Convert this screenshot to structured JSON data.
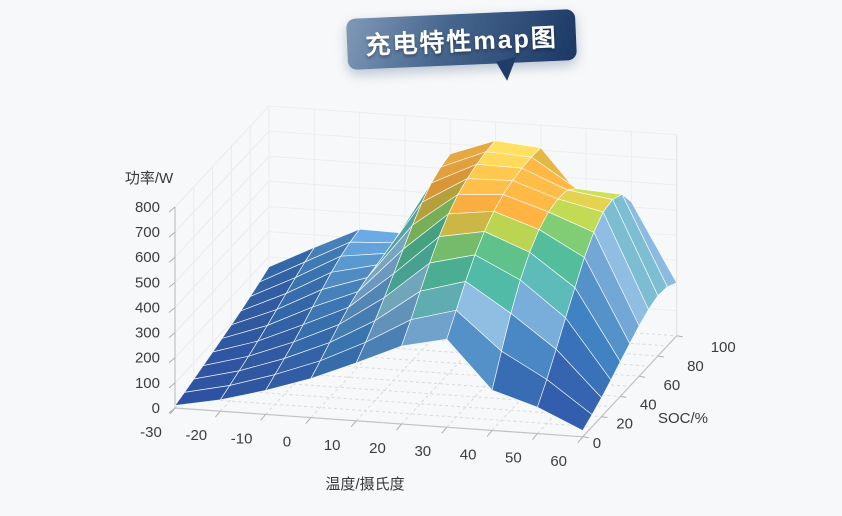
{
  "title": {
    "text": "充电特性map图"
  },
  "chart_data": {
    "type": "surface",
    "title": "充电特性map图",
    "legend_position": "none",
    "grid_on": true,
    "x_axis": {
      "name": "温度/摄氏度",
      "ticks": [
        -30,
        -20,
        -10,
        0,
        10,
        20,
        30,
        40,
        50,
        60
      ],
      "range": [
        -30,
        60
      ]
    },
    "y_axis": {
      "name": "SOC/%",
      "ticks": [
        0,
        20,
        40,
        60,
        80,
        100
      ],
      "range": [
        0,
        100
      ]
    },
    "z_axis": {
      "name": "功率/W",
      "ticks": [
        0,
        100,
        200,
        300,
        400,
        500,
        600,
        700,
        800
      ],
      "range": [
        0,
        800
      ]
    },
    "grid": {
      "temperature": [
        -30,
        -20,
        -10,
        0,
        10,
        20,
        30,
        40,
        50,
        60
      ],
      "soc": [
        0,
        10,
        20,
        30,
        40,
        50,
        60,
        70,
        80,
        90,
        100
      ],
      "power": [
        [
          10,
          22,
          35,
          48,
          62,
          76,
          90,
          105,
          122,
          140,
          160
        ],
        [
          45,
          62,
          80,
          98,
          118,
          140,
          163,
          187,
          210,
          232,
          250
        ],
        [
          95,
          118,
          142,
          168,
          196,
          226,
          256,
          284,
          308,
          324,
          335
        ],
        [
          155,
          186,
          218,
          250,
          278,
          300,
          316,
          326,
          332,
          334,
          332
        ],
        [
          230,
          272,
          318,
          370,
          425,
          482,
          538,
          588,
          625,
          648,
          660
        ],
        [
          310,
          375,
          448,
          520,
          585,
          635,
          672,
          695,
          712,
          722,
          726
        ],
        [
          350,
          425,
          500,
          565,
          618,
          658,
          685,
          700,
          709,
          713,
          710
        ],
        [
          160,
          275,
          385,
          478,
          548,
          598,
          628,
          640,
          635,
          600,
          505
        ],
        [
          105,
          175,
          255,
          340,
          420,
          500,
          560,
          600,
          610,
          590,
          520
        ],
        [
          25,
          48,
          75,
          105,
          138,
          170,
          200,
          225,
          240,
          235,
          210
        ]
      ]
    },
    "colormap": [
      {
        "z": 0,
        "color": "#2b4c9d"
      },
      {
        "z": 140,
        "color": "#3562ad"
      },
      {
        "z": 240,
        "color": "#3d7ec0"
      },
      {
        "z": 330,
        "color": "#5f9ace"
      },
      {
        "z": 400,
        "color": "#93c0e4"
      },
      {
        "z": 455,
        "color": "#52b9ae"
      },
      {
        "z": 545,
        "color": "#50b98e"
      },
      {
        "z": 600,
        "color": "#a8cf51"
      },
      {
        "z": 645,
        "color": "#f0a33c"
      },
      {
        "z": 705,
        "color": "#f4b748"
      },
      {
        "z": 732,
        "color": "#f0d666"
      }
    ]
  },
  "colors": {
    "background": "#f7f8f9",
    "bubble_gradient_start": "#8099b8",
    "bubble_gradient_end": "#1e3b68",
    "wireframe": "#ffffff",
    "axis_text": "#3d3d3f",
    "floor_grid": "#d9dadc",
    "wall_grid": "#ebebed",
    "axis_line": "#c2c3c5"
  }
}
